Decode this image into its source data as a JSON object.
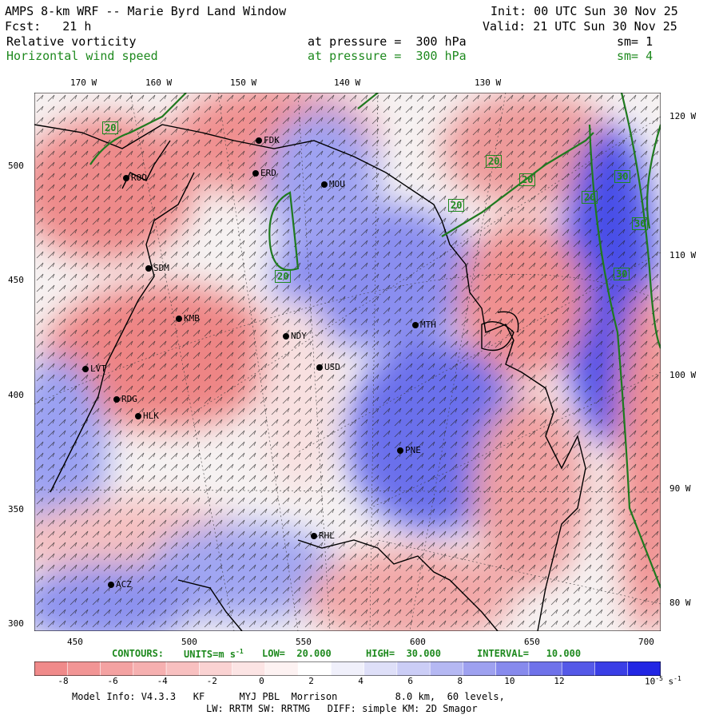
{
  "header": {
    "title": "AMPS 8-km WRF -- Marie Byrd Land Window",
    "init": "Init: 00 UTC Sun 30 Nov 25",
    "fcst": "Fcst:   21 h",
    "valid": "Valid: 21 UTC Sun 30 Nov 25",
    "field1": "Relative vorticity",
    "field1_level": "at pressure =  300 hPa",
    "field1_sm": "sm= 1",
    "field2": "Horizontal wind speed",
    "field2_level": "at pressure =  300 hPa",
    "field2_sm": "sm= 4"
  },
  "axes": {
    "x_ticks": [
      "450",
      "500",
      "550",
      "600",
      "650",
      "700"
    ],
    "y_ticks": [
      "300",
      "350",
      "400",
      "450",
      "500"
    ],
    "lon_top": [
      "170 W",
      "160 W",
      "150 W",
      "140 W",
      "130 W"
    ],
    "lon_right": [
      "120 W",
      "110 W",
      "100 W",
      "90 W",
      "80 W"
    ]
  },
  "stations": [
    "ROO",
    "FDK",
    "ERD",
    "MOU",
    "SDM",
    "KMB",
    "NDY",
    "MTH",
    "USD",
    "LVT",
    "RDG",
    "HLK",
    "PNE",
    "RHL",
    "ACZ"
  ],
  "contour_labels": [
    "20",
    "20",
    "20",
    "20",
    "20",
    "20",
    "30",
    "30",
    "30"
  ],
  "contour_info": {
    "contours": "CONTOURS:",
    "units": "UNITS=m s",
    "units_exp": "-1",
    "low": "LOW=  20.000",
    "high": "HIGH=  30.000",
    "interval": "INTERVAL=   10.000"
  },
  "colorbar": {
    "labels": [
      "-8",
      "-6",
      "-4",
      "-2",
      "0",
      "2",
      "4",
      "6",
      "8",
      "10",
      "12"
    ],
    "unit": "10",
    "unit_exp": "-5",
    "unit_suffix": "s",
    "unit_suffix_exp": "-1",
    "colors": [
      "#f08a8a",
      "#f29595",
      "#f4a2a2",
      "#f6b0b0",
      "#f8c0c0",
      "#fad2d2",
      "#fce4e4",
      "#fdf2f2",
      "#ffffff",
      "#f0f0fb",
      "#dedff8",
      "#cbcdf6",
      "#b5b8f3",
      "#9ea1f0",
      "#878aed",
      "#6f72ea",
      "#5559e8",
      "#3a3ee6",
      "#2226e4"
    ]
  },
  "footer": {
    "line1": "Model Info: V4.3.3   KF      MYJ PBL  Morrison          8.0 km,  60 levels,",
    "line2": "LW: RRTM SW: RRTMG   DIFF: simple KM: 2D Smagor"
  }
}
